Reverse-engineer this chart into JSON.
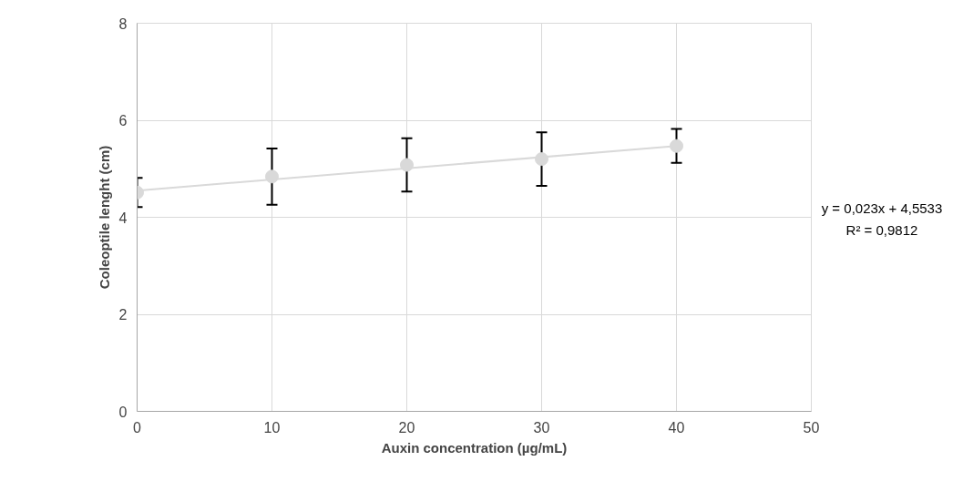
{
  "chart_data": {
    "type": "scatter",
    "xlabel": "Auxin concentration (µg/mL)",
    "ylabel": "Coleoptile lenght (cm)",
    "x": [
      0,
      10,
      20,
      30,
      40
    ],
    "series": [
      {
        "color": "#d9d9d9",
        "marker": "circle",
        "values": [
          4.51,
          4.84,
          5.08,
          5.2,
          5.47
        ],
        "errors": [
          0.3,
          0.58,
          0.55,
          0.55,
          0.35
        ]
      },
      {
        "type": "line",
        "color": "#d9d9d9",
        "x": [
          0,
          40
        ],
        "values": [
          4.55,
          5.47
        ]
      }
    ],
    "annotations": [
      "y = 0,023x + 4,5533",
      "R² = 0,9812"
    ],
    "xlim": [
      0,
      50
    ],
    "xticks": [
      0,
      10,
      20,
      30,
      40,
      50
    ],
    "ylim": [
      0,
      8
    ],
    "yticks": [
      0,
      2,
      4,
      6,
      8
    ],
    "grid": true
  }
}
